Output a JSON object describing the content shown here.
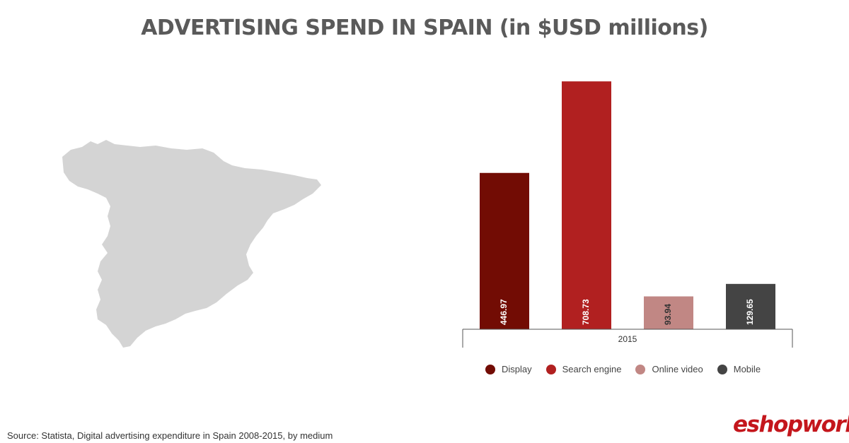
{
  "title": "ADVERTISING SPEND IN SPAIN (in $USD millions)",
  "source": "Source: Statista, Digital advertising expenditure in Spain 2008-2015, by medium",
  "logo": {
    "prefix": "e",
    "rest": "shopworld"
  },
  "chart_data": {
    "type": "bar",
    "title": "ADVERTISING SPEND IN SPAIN (in $USD millions)",
    "categories": [
      "2015"
    ],
    "series": [
      {
        "name": "Display",
        "values": [
          446.97
        ],
        "color": "#720c04",
        "label": "446.97",
        "label_color": "#ffffff"
      },
      {
        "name": "Search engine",
        "values": [
          708.73
        ],
        "color": "#b12020",
        "label": "708.73",
        "label_color": "#ffffff"
      },
      {
        "name": "Online video",
        "values": [
          93.94
        ],
        "color": "#c18784",
        "label": "93.94",
        "label_color": "#333333"
      },
      {
        "name": "Mobile",
        "values": [
          129.65
        ],
        "color": "#444444",
        "label": "129.65",
        "label_color": "#ffffff"
      }
    ],
    "ylim": [
      0,
      800
    ],
    "grid": false,
    "legend": "bottom"
  },
  "colors": {
    "title": "#5a5a5a",
    "map": "#d4d4d4",
    "brand": "#c4161c"
  }
}
